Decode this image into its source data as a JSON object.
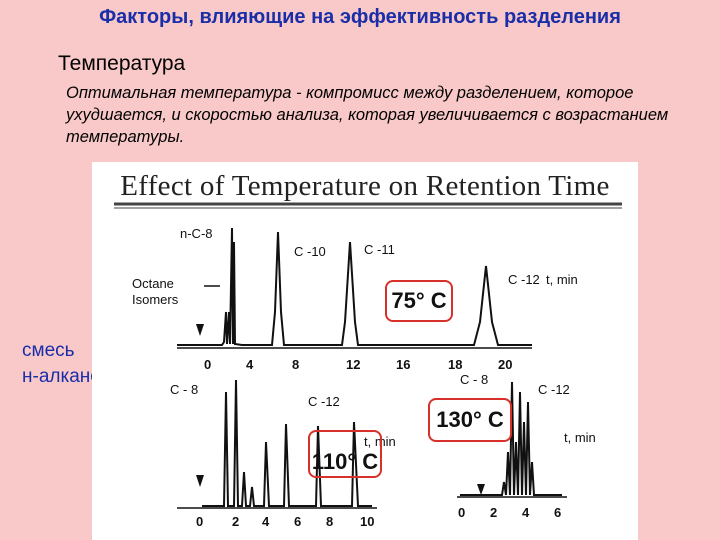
{
  "slide": {
    "title": "Факторы, влияющие на эффективность разделения",
    "subtitle": "Температура",
    "paragraph": "Оптимальная температура - компромисс между разделением, которое ухудшается, и скоростью анализа, которая увеличивается с возрастанием температуры.",
    "side_label_line1": "смесь",
    "side_label_line2": "н-алканов"
  },
  "figure": {
    "title": "Effect of Temperature on Retention Time",
    "panel_75": {
      "temp": "75° C",
      "labels": {
        "nc8": "n-C-8",
        "c10": "C -10",
        "c11": "C -11",
        "c12": "C -12",
        "octane1": "Octane",
        "octane2": "Isomers",
        "axis": "t, min"
      },
      "ticks": [
        "0",
        "4",
        "8",
        "12",
        "16",
        "18",
        "20"
      ]
    },
    "panel_110": {
      "temp": "110° C",
      "labels": {
        "c8": "C - 8",
        "c12": "C -12",
        "axis": "t, min"
      },
      "ticks": [
        "0",
        "2",
        "4",
        "6",
        "8",
        "10"
      ]
    },
    "panel_130": {
      "temp": "130° C",
      "labels": {
        "c8": "C - 8",
        "c12": "C -12",
        "axis": "t, min"
      },
      "ticks": [
        "0",
        "2",
        "4",
        "6"
      ]
    },
    "accent": "#d8302b"
  }
}
